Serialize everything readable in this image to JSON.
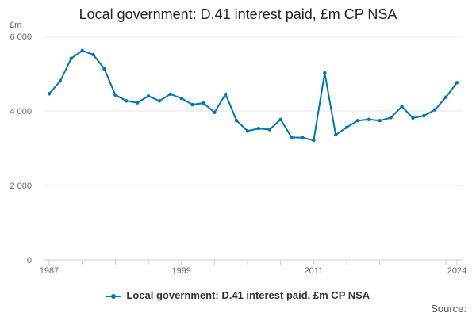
{
  "chart_data": {
    "type": "line",
    "title": "Local government: D.41 interest paid, £m CP NSA",
    "ylabel": "£m",
    "xlabel": "",
    "ylim": [
      0,
      6000
    ],
    "xlim": [
      1987,
      2024
    ],
    "y_ticks": [
      0,
      2000,
      4000,
      6000
    ],
    "y_tick_labels": [
      "0",
      "2 000",
      "4 000",
      "6 000"
    ],
    "x_tick_labels": [
      "1987",
      "1999",
      "2011",
      "2024"
    ],
    "x_tick_values": [
      1987,
      1999,
      2011,
      2024
    ],
    "grid": "horizontal",
    "legend_position": "bottom",
    "x": [
      1987,
      1988,
      1989,
      1990,
      1991,
      1992,
      1993,
      1994,
      1995,
      1996,
      1997,
      1998,
      1999,
      2000,
      2001,
      2002,
      2003,
      2004,
      2005,
      2006,
      2007,
      2008,
      2009,
      2010,
      2011,
      2012,
      2013,
      2014,
      2015,
      2016,
      2017,
      2018,
      2019,
      2020,
      2021,
      2022,
      2023,
      2024
    ],
    "series": [
      {
        "name": "Local government: D.41 interest paid, £m CP NSA",
        "color": "#0074b8",
        "values": [
          4460,
          4800,
          5410,
          5620,
          5510,
          5130,
          4430,
          4270,
          4220,
          4400,
          4270,
          4450,
          4340,
          4170,
          4210,
          3960,
          4450,
          3740,
          3460,
          3530,
          3500,
          3770,
          3290,
          3280,
          3210,
          5020,
          3360,
          3560,
          3740,
          3770,
          3740,
          3820,
          4120,
          3810,
          3870,
          4030,
          4370,
          4760
        ]
      }
    ]
  },
  "legend_label": "Local government: D.41 interest paid, £m CP NSA",
  "source_label": "Source:"
}
